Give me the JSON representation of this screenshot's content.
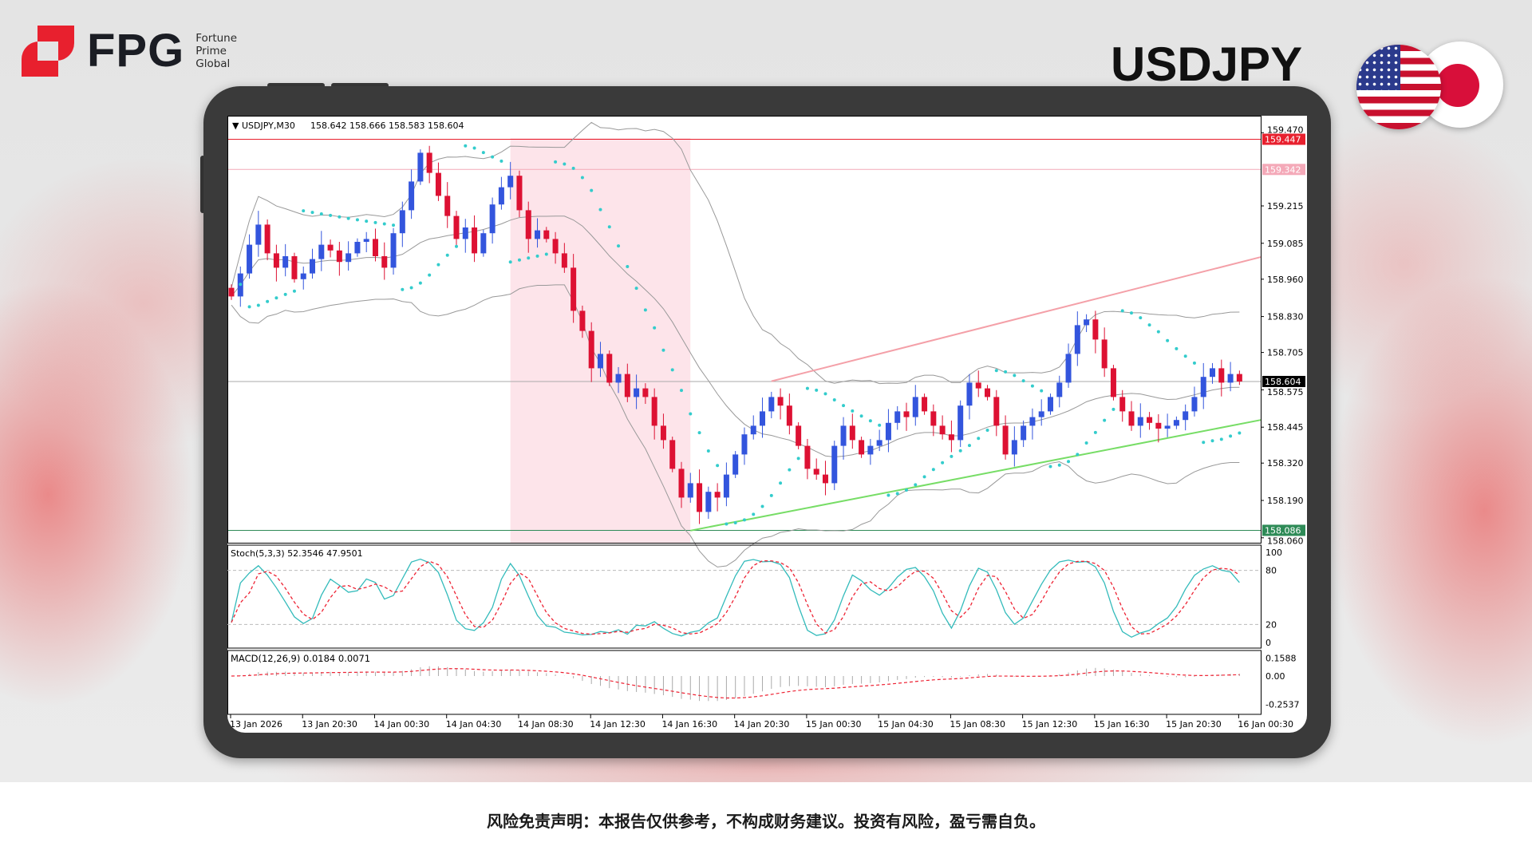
{
  "brand": {
    "name": "FPG",
    "sub": [
      "Fortune",
      "Prime",
      "Global"
    ],
    "color": "#e8202e"
  },
  "title": "USDJPY",
  "flags": [
    "us-flag",
    "japan-flag"
  ],
  "disclaimer": "风险免责声明：本报告仅供参考，不构成财务建议。投资有风险，盈亏需自负。",
  "chart_data": {
    "type": "candlestick",
    "header": "USDJPY,M30",
    "ohlc_header": "158.642 158.666 158.583 158.604",
    "symbol": "USDJPY",
    "timeframe": "M30",
    "price_ticks": [
      "159.470",
      "159.215",
      "159.085",
      "158.960",
      "158.830",
      "158.705",
      "158.575",
      "158.445",
      "158.320",
      "158.190",
      "158.060"
    ],
    "price_tick_values": [
      159.47,
      159.215,
      159.085,
      158.96,
      158.83,
      158.705,
      158.575,
      158.445,
      158.32,
      158.19,
      158.06
    ],
    "time_labels": [
      "13 Jan 2026",
      "13 Jan 20:30",
      "14 Jan 00:30",
      "14 Jan 04:30",
      "14 Jan 08:30",
      "14 Jan 12:30",
      "14 Jan 16:30",
      "14 Jan 20:30",
      "15 Jan 00:30",
      "15 Jan 04:30",
      "15 Jan 08:30",
      "15 Jan 12:30",
      "15 Jan 16:30",
      "15 Jan 20:30",
      "16 Jan 00:30"
    ],
    "closes": [
      158.9,
      158.98,
      159.08,
      159.15,
      159.05,
      159.0,
      159.04,
      158.96,
      158.98,
      159.03,
      159.08,
      159.06,
      159.02,
      159.05,
      159.09,
      159.1,
      159.04,
      159.0,
      159.12,
      159.2,
      159.3,
      159.4,
      159.33,
      159.25,
      159.18,
      159.1,
      159.14,
      159.05,
      159.12,
      159.22,
      159.28,
      159.32,
      159.2,
      159.1,
      159.13,
      159.1,
      159.05,
      159.0,
      158.85,
      158.78,
      158.65,
      158.7,
      158.6,
      158.63,
      158.55,
      158.58,
      158.55,
      158.45,
      158.4,
      158.3,
      158.2,
      158.25,
      158.15,
      158.22,
      158.2,
      158.28,
      158.35,
      158.42,
      158.45,
      158.5,
      158.55,
      158.52,
      158.45,
      158.38,
      158.3,
      158.28,
      158.25,
      158.38,
      158.45,
      158.4,
      158.35,
      158.38,
      158.4,
      158.46,
      158.5,
      158.48,
      158.55,
      158.5,
      158.45,
      158.42,
      158.4,
      158.52,
      158.6,
      158.58,
      158.55,
      158.45,
      158.35,
      158.4,
      158.45,
      158.48,
      158.5,
      158.55,
      158.6,
      158.7,
      158.8,
      158.82,
      158.75,
      158.65,
      158.55,
      158.5,
      158.45,
      158.48,
      158.46,
      158.44,
      158.45,
      158.47,
      158.5,
      158.55,
      158.62,
      158.65,
      158.6,
      158.63,
      158.604
    ],
    "levels": [
      {
        "price": 159.447,
        "label": "159.447",
        "color": "#e8202e"
      },
      {
        "price": 159.342,
        "label": "159.342",
        "color": "#f4a9b8"
      },
      {
        "price": 158.086,
        "label": "158.086",
        "color": "#2e8b57"
      },
      {
        "price": 158.604,
        "label": "158.604",
        "color": "#000000"
      }
    ],
    "trendlines": [
      {
        "from": [
          60,
          158.605
        ],
        "to": [
          116,
          159.037
        ],
        "color": "#f4a0a8"
      },
      {
        "from": [
          51,
          158.085
        ],
        "to": [
          116,
          158.47
        ],
        "color": "#77dd66"
      }
    ],
    "shaded_zone": {
      "from_bar": 31,
      "to_bar": 51,
      "color": "#fde4ea"
    },
    "bull_color": "#3355dd",
    "bear_color": "#dd1133",
    "sar_color": "#33cccc",
    "stoch": {
      "label": "Stoch(5,3,3) 52.3546 47.9501",
      "ticks": [
        "100",
        "80",
        "20",
        "0"
      ],
      "main_color": "#33bbbb",
      "signal_color": "#ee2233"
    },
    "macd": {
      "label": "MACD(12,26,9) 0.0184 0.0071",
      "ticks": [
        "0.1588",
        "0.00",
        "-0.2537"
      ],
      "signal_color": "#ee2233"
    }
  }
}
